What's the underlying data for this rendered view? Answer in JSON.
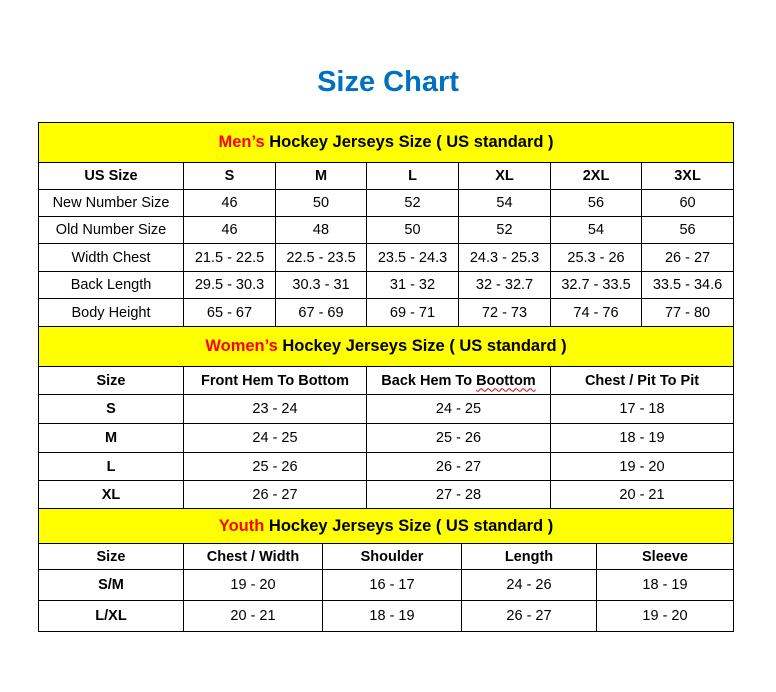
{
  "title": "Size Chart",
  "colors": {
    "title": "#0070C0",
    "header_bg": "#FFFF00",
    "accent": "#FF0000"
  },
  "sections": [
    {
      "id": "men",
      "heading_accent": "Men’s",
      "heading_rest": " Hockey Jerseys Size ( US standard )",
      "columns": [
        "US Size",
        "S",
        "M",
        "L",
        "XL",
        "2XL",
        "3XL"
      ],
      "rows": [
        [
          "New Number Size",
          "46",
          "50",
          "52",
          "54",
          "56",
          "60"
        ],
        [
          "Old Number Size",
          "46",
          "48",
          "50",
          "52",
          "54",
          "56"
        ],
        [
          "Width Chest",
          "21.5 - 22.5",
          "22.5 - 23.5",
          "23.5 - 24.3",
          "24.3 - 25.3",
          "25.3 - 26",
          "26 - 27"
        ],
        [
          "Back Length",
          "29.5 - 30.3",
          "30.3 - 31",
          "31 - 32",
          "32 - 32.7",
          "32.7 - 33.5",
          "33.5 - 34.6"
        ],
        [
          "Body Height",
          "65 - 67",
          "67 - 69",
          "69 - 71",
          "72 - 73",
          "74 - 76",
          "77 - 80"
        ]
      ]
    },
    {
      "id": "women",
      "heading_accent": "Women’s",
      "heading_rest": " Hockey Jerseys Size ( US standard )",
      "columns": [
        "Size",
        "Front Hem To Bottom",
        "Back Hem To Boottom",
        "Chest / Pit To Pit"
      ],
      "rows": [
        [
          "S",
          "23 - 24",
          "24 - 25",
          "17 - 18"
        ],
        [
          "M",
          "24 - 25",
          "25 - 26",
          "18 - 19"
        ],
        [
          "L",
          "25 - 26",
          "26 - 27",
          "19 - 20"
        ],
        [
          "XL",
          "26 - 27",
          "27 - 28",
          "20 - 21"
        ]
      ]
    },
    {
      "id": "youth",
      "heading_accent": "Youth",
      "heading_rest": " Hockey Jerseys Size ( US standard )",
      "columns": [
        "Size",
        "Chest / Width",
        "Shoulder",
        "Length",
        "Sleeve"
      ],
      "rows": [
        [
          "S/M",
          "19 - 20",
          "16 - 17",
          "24 - 26",
          "18 - 19"
        ],
        [
          "L/XL",
          "20 - 21",
          "18 - 19",
          "26 - 27",
          "19 - 20"
        ]
      ]
    }
  ]
}
